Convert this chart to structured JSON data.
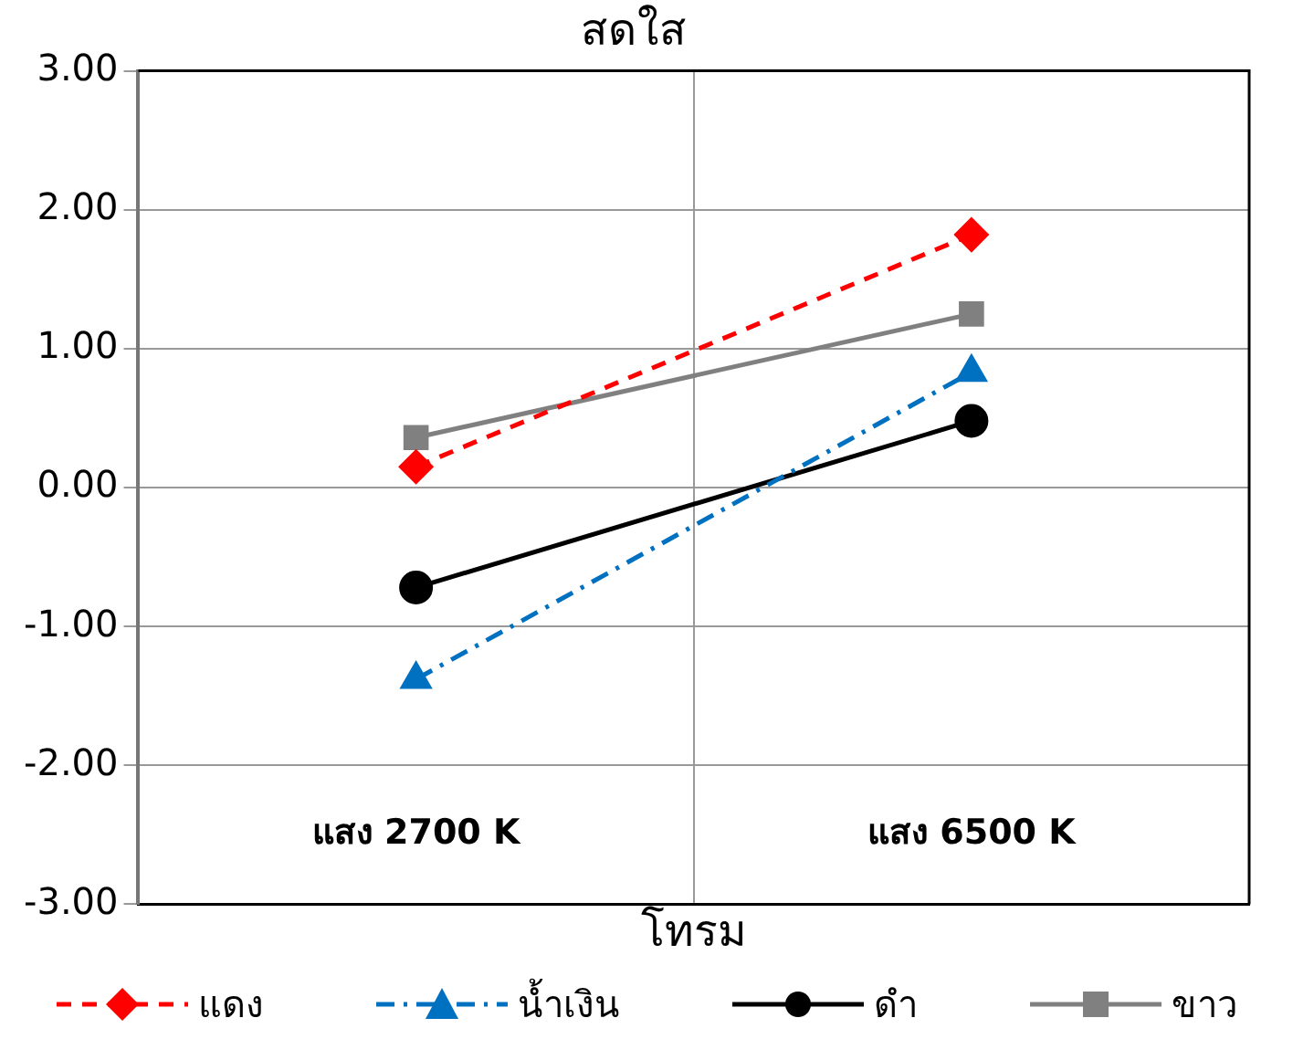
{
  "chart_data": {
    "type": "line",
    "title": "สดใส",
    "xlabel": "โทรม",
    "categories": [
      "แสง 2700 K",
      "แสง 6500 K"
    ],
    "series": [
      {
        "name": "แดง",
        "color": "#ff0000",
        "values": [
          0.15,
          1.82
        ],
        "marker": "diamond",
        "line_style": "dashed"
      },
      {
        "name": "น้ำเงิน",
        "color": "#0070c0",
        "values": [
          -1.38,
          0.83
        ],
        "marker": "triangle",
        "line_style": "dashdot"
      },
      {
        "name": "ดำ",
        "color": "#000000",
        "values": [
          -0.72,
          0.48
        ],
        "marker": "circle",
        "line_style": "solid"
      },
      {
        "name": "ขาว",
        "color": "#808080",
        "values": [
          0.36,
          1.25
        ],
        "marker": "square",
        "line_style": "solid"
      }
    ],
    "ylim": [
      -3,
      3
    ],
    "yticks": [
      {
        "value": -3,
        "label": "-3.00"
      },
      {
        "value": -2,
        "label": "-2.00"
      },
      {
        "value": -1,
        "label": "-1.00"
      },
      {
        "value": 0,
        "label": "0.00"
      },
      {
        "value": 1,
        "label": "1.00"
      },
      {
        "value": 2,
        "label": "2.00"
      },
      {
        "value": 3,
        "label": "3.00"
      }
    ],
    "grid": true,
    "legend": "bottom"
  }
}
